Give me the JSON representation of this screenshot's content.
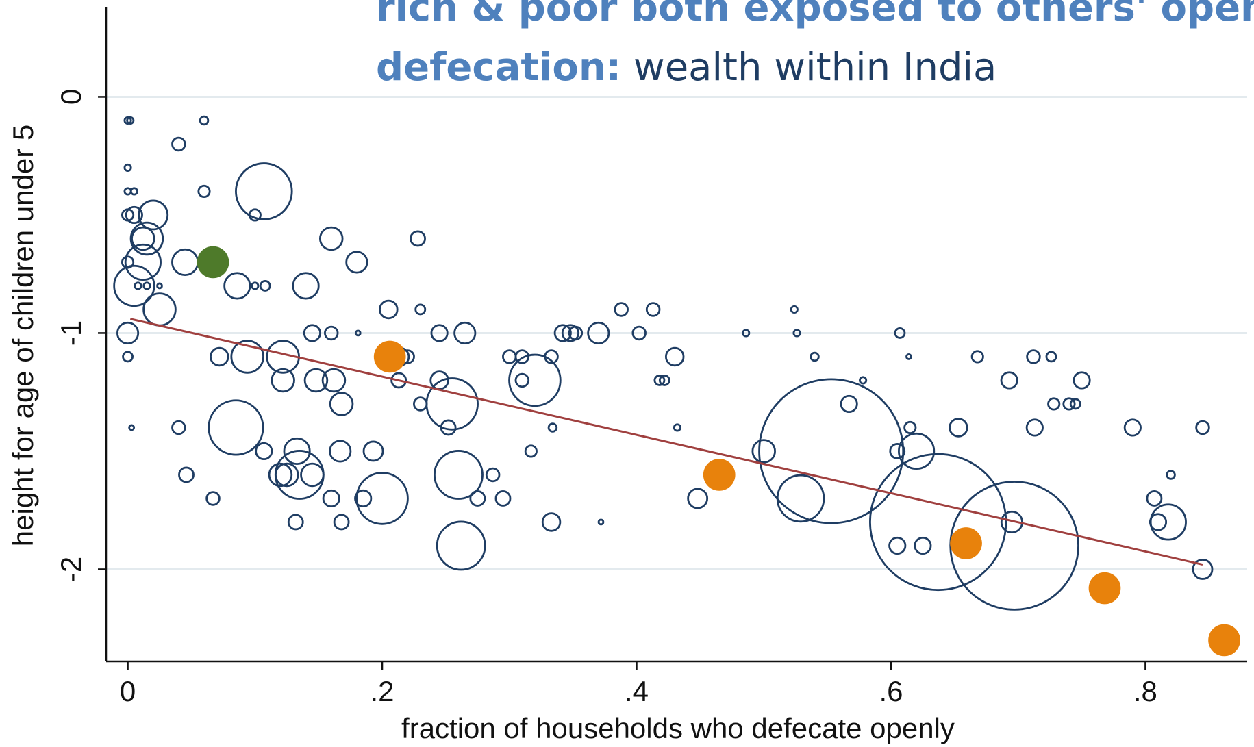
{
  "chart_data": {
    "type": "scatter",
    "title_line1": "rich & poor both exposed to others' open",
    "title_line2_bold": "defecation:",
    "title_line2": "wealth within India",
    "xlabel": "fraction of households who defecate openly",
    "ylabel": "height for age of children under 5",
    "xlim": [
      -0.017,
      0.88
    ],
    "ylim": [
      -2.39,
      0.41
    ],
    "xticks": [
      0,
      {
        "value": 0.2,
        "label": ".2"
      },
      {
        "value": 0.4,
        "label": ".4"
      },
      {
        "value": 0.6,
        "label": ".6"
      },
      {
        "value": 0.8,
        "label": ".8"
      }
    ],
    "yticks": [
      0,
      -1,
      -2
    ],
    "grid": true,
    "series": [
      {
        "color": "#1f3d63",
        "filled": false,
        "points": [
          [
            0.0,
            -0.1,
            4
          ],
          [
            0.002,
            -0.1,
            4
          ],
          [
            0.04,
            -0.2,
            8
          ],
          [
            0.06,
            -0.1,
            5
          ],
          [
            0.0,
            -0.3,
            4
          ],
          [
            0.0,
            -0.4,
            4
          ],
          [
            0.005,
            -0.4,
            4
          ],
          [
            0.06,
            -0.4,
            7
          ],
          [
            0.107,
            -0.4,
            35
          ],
          [
            0.0,
            -0.5,
            7
          ],
          [
            0.005,
            -0.5,
            10
          ],
          [
            0.02,
            -0.5,
            18
          ],
          [
            0.1,
            -0.5,
            7
          ],
          [
            0.012,
            -0.6,
            14
          ],
          [
            0.015,
            -0.6,
            20
          ],
          [
            0.16,
            -0.6,
            14
          ],
          [
            0.228,
            -0.6,
            9
          ],
          [
            0.0,
            -0.7,
            7
          ],
          [
            0.012,
            -0.7,
            22
          ],
          [
            0.045,
            -0.7,
            16
          ],
          [
            0.18,
            -0.7,
            13
          ],
          [
            0.005,
            -0.8,
            25
          ],
          [
            0.008,
            -0.8,
            4
          ],
          [
            0.015,
            -0.8,
            4
          ],
          [
            0.025,
            -0.8,
            3
          ],
          [
            0.086,
            -0.8,
            16
          ],
          [
            0.1,
            -0.8,
            4
          ],
          [
            0.108,
            -0.8,
            6
          ],
          [
            0.14,
            -0.8,
            16
          ],
          [
            0.025,
            -0.9,
            20
          ],
          [
            0.205,
            -0.9,
            11
          ],
          [
            0.23,
            -0.9,
            6
          ],
          [
            0.388,
            -0.9,
            8
          ],
          [
            0.413,
            -0.9,
            8
          ],
          [
            0.524,
            -0.9,
            4
          ],
          [
            0.0,
            -1.0,
            13
          ],
          [
            0.145,
            -1.0,
            10
          ],
          [
            0.16,
            -1.0,
            8
          ],
          [
            0.181,
            -1.0,
            3
          ],
          [
            0.245,
            -1.0,
            10
          ],
          [
            0.265,
            -1.0,
            13
          ],
          [
            0.342,
            -1.0,
            10
          ],
          [
            0.348,
            -1.0,
            10
          ],
          [
            0.352,
            -1.0,
            8
          ],
          [
            0.37,
            -1.0,
            13
          ],
          [
            0.402,
            -1.0,
            8
          ],
          [
            0.486,
            -1.0,
            4
          ],
          [
            0.526,
            -1.0,
            4
          ],
          [
            0.607,
            -1.0,
            6
          ],
          [
            0.0,
            -1.1,
            6
          ],
          [
            0.072,
            -1.1,
            11
          ],
          [
            0.094,
            -1.1,
            20
          ],
          [
            0.122,
            -1.1,
            20
          ],
          [
            0.214,
            -1.1,
            11
          ],
          [
            0.22,
            -1.1,
            8
          ],
          [
            0.3,
            -1.1,
            8
          ],
          [
            0.31,
            -1.1,
            8
          ],
          [
            0.333,
            -1.1,
            8
          ],
          [
            0.43,
            -1.1,
            11
          ],
          [
            0.54,
            -1.1,
            5
          ],
          [
            0.614,
            -1.1,
            3
          ],
          [
            0.668,
            -1.1,
            7
          ],
          [
            0.712,
            -1.1,
            8
          ],
          [
            0.726,
            -1.1,
            6
          ],
          [
            0.122,
            -1.2,
            14
          ],
          [
            0.148,
            -1.2,
            14
          ],
          [
            0.162,
            -1.2,
            14
          ],
          [
            0.213,
            -1.2,
            9
          ],
          [
            0.245,
            -1.2,
            11
          ],
          [
            0.31,
            -1.2,
            8
          ],
          [
            0.32,
            -1.2,
            32
          ],
          [
            0.418,
            -1.2,
            6
          ],
          [
            0.422,
            -1.2,
            6
          ],
          [
            0.578,
            -1.2,
            4
          ],
          [
            0.693,
            -1.2,
            10
          ],
          [
            0.75,
            -1.2,
            10
          ],
          [
            0.168,
            -1.3,
            14
          ],
          [
            0.23,
            -1.3,
            8
          ],
          [
            0.255,
            -1.3,
            32
          ],
          [
            0.567,
            -1.3,
            10
          ],
          [
            0.728,
            -1.3,
            7
          ],
          [
            0.74,
            -1.3,
            7
          ],
          [
            0.745,
            -1.3,
            6
          ],
          [
            0.003,
            -1.4,
            3
          ],
          [
            0.04,
            -1.4,
            8
          ],
          [
            0.085,
            -1.4,
            34
          ],
          [
            0.252,
            -1.4,
            9
          ],
          [
            0.334,
            -1.4,
            5
          ],
          [
            0.432,
            -1.4,
            4
          ],
          [
            0.553,
            -1.5,
            90
          ],
          [
            0.615,
            -1.4,
            7
          ],
          [
            0.653,
            -1.4,
            11
          ],
          [
            0.713,
            -1.4,
            10
          ],
          [
            0.79,
            -1.4,
            10
          ],
          [
            0.845,
            -1.4,
            8
          ],
          [
            0.107,
            -1.5,
            10
          ],
          [
            0.133,
            -1.5,
            16
          ],
          [
            0.167,
            -1.5,
            13
          ],
          [
            0.193,
            -1.5,
            12
          ],
          [
            0.317,
            -1.5,
            7
          ],
          [
            0.5,
            -1.5,
            14
          ],
          [
            0.605,
            -1.5,
            9
          ],
          [
            0.62,
            -1.5,
            22
          ],
          [
            0.046,
            -1.6,
            9
          ],
          [
            0.12,
            -1.6,
            14
          ],
          [
            0.125,
            -1.6,
            14
          ],
          [
            0.135,
            -1.6,
            30
          ],
          [
            0.145,
            -1.6,
            14
          ],
          [
            0.26,
            -1.6,
            30
          ],
          [
            0.287,
            -1.6,
            8
          ],
          [
            0.067,
            -1.7,
            8
          ],
          [
            0.16,
            -1.7,
            10
          ],
          [
            0.185,
            -1.7,
            10
          ],
          [
            0.2,
            -1.7,
            32
          ],
          [
            0.275,
            -1.7,
            9
          ],
          [
            0.295,
            -1.7,
            9
          ],
          [
            0.448,
            -1.7,
            12
          ],
          [
            0.529,
            -1.7,
            29
          ],
          [
            0.807,
            -1.7,
            9
          ],
          [
            0.82,
            -1.6,
            5
          ],
          [
            0.132,
            -1.8,
            9
          ],
          [
            0.168,
            -1.8,
            9
          ],
          [
            0.333,
            -1.8,
            11
          ],
          [
            0.372,
            -1.8,
            3
          ],
          [
            0.637,
            -1.8,
            85
          ],
          [
            0.695,
            -1.8,
            13
          ],
          [
            0.81,
            -1.8,
            10
          ],
          [
            0.818,
            -1.8,
            22
          ],
          [
            0.262,
            -1.9,
            30
          ],
          [
            0.605,
            -1.9,
            10
          ],
          [
            0.625,
            -1.9,
            10
          ],
          [
            0.697,
            -1.9,
            80
          ],
          [
            0.845,
            -2.0,
            12
          ]
        ]
      },
      {
        "color": "#e8820c",
        "filled": true,
        "points": [
          [
            0.206,
            -1.1,
            20
          ],
          [
            0.465,
            -1.6,
            20
          ],
          [
            0.659,
            -1.89,
            20
          ],
          [
            0.768,
            -2.08,
            20
          ],
          [
            0.862,
            -2.3,
            20
          ]
        ]
      },
      {
        "color": "#4e7a2a",
        "filled": true,
        "points": [
          [
            0.067,
            -0.7,
            20
          ]
        ]
      }
    ],
    "fit": {
      "color": "#a0403f",
      "x": [
        0.002,
        0.845
      ],
      "y": [
        -0.94,
        -1.98
      ]
    }
  }
}
